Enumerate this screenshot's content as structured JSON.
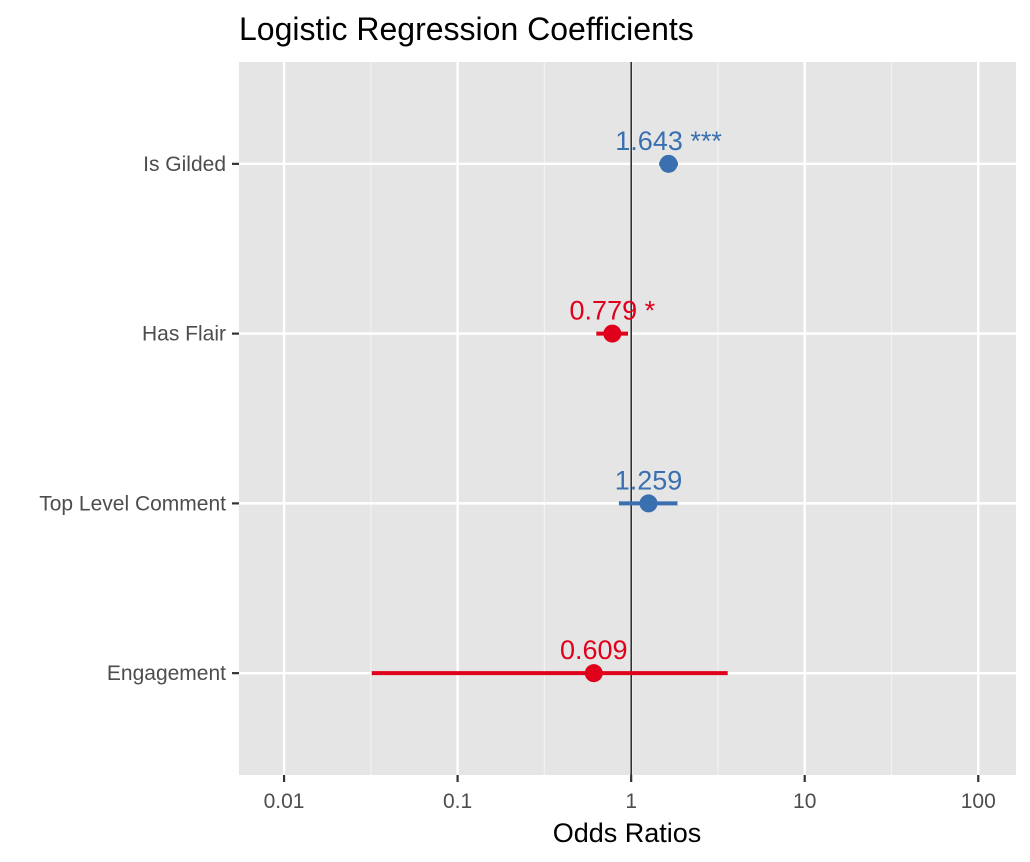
{
  "chart_data": {
    "type": "forest",
    "title": "Logistic Regression Coefficients",
    "xlabel": "Odds Ratios",
    "ylabel": "",
    "x_scale": "log10",
    "xlim": [
      0.0055,
      165
    ],
    "x_ticks": [
      {
        "value": 0.01,
        "label": "0.01"
      },
      {
        "value": 0.1,
        "label": "0.1"
      },
      {
        "value": 1,
        "label": "1"
      },
      {
        "value": 10,
        "label": "10"
      },
      {
        "value": 100,
        "label": "100"
      }
    ],
    "reference_line": 1,
    "grid": true,
    "legend": "none",
    "categories": [
      "Is Gilded",
      "Has Flair",
      "Top Level Comment",
      "Engagement"
    ],
    "points": [
      {
        "term": "Is Gilded",
        "estimate": 1.643,
        "ci_low": 1.45,
        "ci_high": 1.86,
        "label": "1.643 ***",
        "color": "#3a6fb0"
      },
      {
        "term": "Has Flair",
        "estimate": 0.779,
        "ci_low": 0.63,
        "ci_high": 0.96,
        "label": "0.779 *",
        "color": "#e0001b"
      },
      {
        "term": "Top Level Comment",
        "estimate": 1.259,
        "ci_low": 0.85,
        "ci_high": 1.85,
        "label": "1.259",
        "color": "#3a6fb0"
      },
      {
        "term": "Engagement",
        "estimate": 0.609,
        "ci_low": 0.032,
        "ci_high": 3.6,
        "label": "0.609",
        "color": "#e0001b"
      }
    ],
    "colors": {
      "panel_background": "#e5e5e5",
      "grid_major": "#ffffff",
      "grid_minor": "#f2f2f2",
      "reference_line": "#000000",
      "tick_text": "#4d4d4d",
      "title_text": "#000000"
    }
  }
}
